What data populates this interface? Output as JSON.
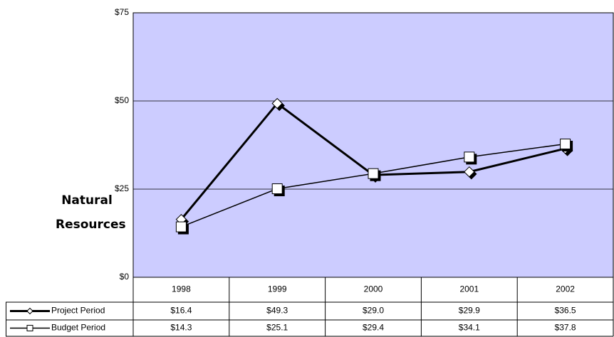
{
  "chart_data": {
    "type": "line",
    "y_label": "Natural Resources",
    "categories": [
      "1998",
      "1999",
      "2000",
      "2001",
      "2002"
    ],
    "series": [
      {
        "name": "Project Period",
        "color": "#000000",
        "marker": "diamond",
        "values": [
          16.4,
          49.3,
          29.0,
          29.9,
          36.5
        ],
        "value_labels": [
          "$16.4",
          "$49.3",
          "$29.0",
          "$29.9",
          "$36.5"
        ]
      },
      {
        "name": "Budget Period",
        "color": "#000000",
        "marker": "square",
        "values": [
          14.3,
          25.1,
          29.4,
          34.1,
          37.8
        ],
        "value_labels": [
          "$14.3",
          "$25.1",
          "$29.4",
          "$34.1",
          "$37.8"
        ]
      }
    ],
    "ylim": [
      0,
      75
    ],
    "yticks": [
      {
        "value": 0,
        "label": "$0"
      },
      {
        "value": 25,
        "label": "$25"
      },
      {
        "value": 50,
        "label": "$50"
      },
      {
        "value": 75,
        "label": "$75"
      }
    ],
    "grid": true,
    "plot_background": "#ccccff"
  }
}
